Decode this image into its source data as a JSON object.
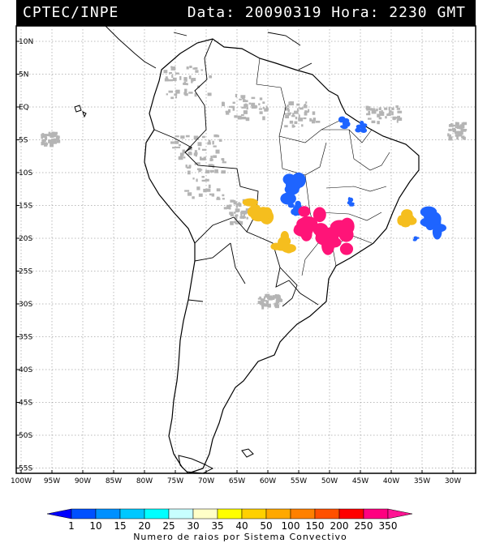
{
  "header": {
    "source": "CPTEC/INPE",
    "datetime": "Data: 20090319 Hora: 2230 GMT"
  },
  "axes": {
    "lat_labels": [
      "10N",
      "5N",
      "EQ",
      "5S",
      "10S",
      "15S",
      "20S",
      "25S",
      "30S",
      "35S",
      "40S",
      "45S",
      "50S",
      "55S"
    ],
    "lat_values": [
      10,
      5,
      0,
      -5,
      -10,
      -15,
      -20,
      -25,
      -30,
      -35,
      -40,
      -45,
      -50,
      -55
    ],
    "lon_labels": [
      "100W",
      "95W",
      "90W",
      "85W",
      "80W",
      "75W",
      "70W",
      "65W",
      "60W",
      "55W",
      "50W",
      "45W",
      "40W",
      "35W",
      "30W"
    ],
    "lon_values": [
      -100,
      -95,
      -90,
      -85,
      -80,
      -75,
      -70,
      -65,
      -60,
      -55,
      -50,
      -45,
      -40,
      -35,
      -30
    ]
  },
  "legend": {
    "title": "Numero de raios por Sistema Convectivo",
    "labels": [
      "1",
      "10",
      "15",
      "20",
      "25",
      "30",
      "35",
      "40",
      "50",
      "100",
      "150",
      "200",
      "250",
      "350"
    ],
    "colors": [
      "#0000ff",
      "#0050ff",
      "#0090ff",
      "#00c8ff",
      "#00ffff",
      "#c8ffff",
      "#ffffc8",
      "#ffff00",
      "#ffd000",
      "#ffa800",
      "#ff8000",
      "#ff5000",
      "#ff0000",
      "#ff0080",
      "#ff1493"
    ]
  },
  "systems": [
    {
      "lon": -61.5,
      "lat": -15.5,
      "color": "#f5be1e",
      "scale": 1.0
    },
    {
      "lon": -55.5,
      "lat": -12.5,
      "color": "#1e64ff",
      "scale": 1.0
    },
    {
      "lon": -55.5,
      "lat": -15.5,
      "color": "#1e64ff",
      "scale": 0.5
    },
    {
      "lon": -52.5,
      "lat": -17.8,
      "color": "#ff1478",
      "scale": 1.2
    },
    {
      "lon": -49.0,
      "lat": -20.2,
      "color": "#ff1478",
      "scale": 1.3
    },
    {
      "lon": -57.5,
      "lat": -21.0,
      "color": "#f5be1e",
      "scale": 0.8
    },
    {
      "lon": -37.5,
      "lat": -17.0,
      "color": "#f5be1e",
      "scale": 0.7
    },
    {
      "lon": -33.5,
      "lat": -17.5,
      "color": "#1e64ff",
      "scale": 1.0
    },
    {
      "lon": -47.5,
      "lat": -2.5,
      "color": "#1e64ff",
      "scale": 0.4
    },
    {
      "lon": -44.8,
      "lat": -3.0,
      "color": "#1e64ff",
      "scale": 0.4
    },
    {
      "lon": -46.5,
      "lat": -14.5,
      "color": "#1e64ff",
      "scale": 0.3
    },
    {
      "lon": -36.0,
      "lat": -20.0,
      "color": "#1e64ff",
      "scale": 0.2
    }
  ]
}
